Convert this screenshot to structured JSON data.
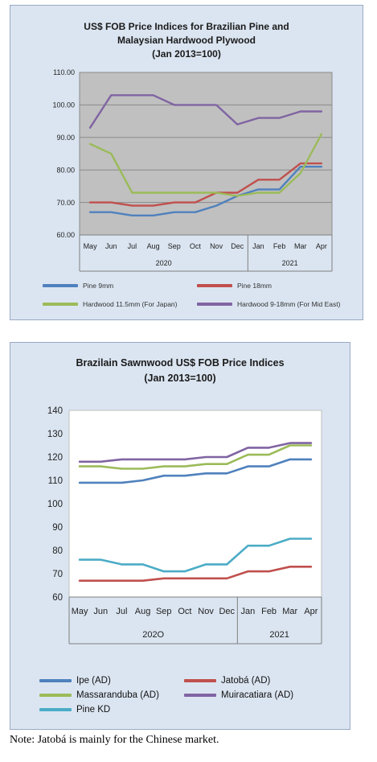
{
  "chart_data": [
    {
      "type": "line",
      "title_lines": [
        "US$ FOB Price Indices for Brazilian Pine and",
        "Malaysian Hardwood Plywood",
        "(Jan 2013=100)"
      ],
      "categories": [
        "May",
        "Jun",
        "Jul",
        "Aug",
        "Sep",
        "Oct",
        "Nov",
        "Dec",
        "Jan",
        "Feb",
        "Mar",
        "Apr"
      ],
      "year_groups": [
        {
          "label": "2020",
          "count": 8
        },
        {
          "label": "2021",
          "count": 4
        }
      ],
      "ylim": [
        60,
        110
      ],
      "yticks": [
        "60.00",
        "70.00",
        "80.00",
        "90.00",
        "100.00",
        "110.00"
      ],
      "grid": true,
      "legend_position": "bottom",
      "series": [
        {
          "name": "Pine 9mm",
          "color": "#4f81bd",
          "values": [
            67,
            67,
            66,
            66,
            67,
            67,
            69,
            72,
            74,
            74,
            81,
            81
          ]
        },
        {
          "name": "Pine 18mm",
          "color": "#c0504d",
          "values": [
            70,
            70,
            69,
            69,
            70,
            70,
            73,
            73,
            77,
            77,
            82,
            82
          ]
        },
        {
          "name": "Hardwood 11.5mm (For Japan)",
          "color": "#9bbb59",
          "values": [
            88,
            85,
            73,
            73,
            73,
            73,
            73,
            72,
            73,
            73,
            79,
            91
          ]
        },
        {
          "name": "Hardwood 9-18mm (For Mid East)",
          "color": "#8064a2",
          "values": [
            93,
            103,
            103,
            103,
            100,
            100,
            100,
            94,
            96,
            96,
            98,
            98
          ]
        }
      ]
    },
    {
      "type": "line",
      "title_lines": [
        "Brazilain Sawnwood US$ FOB Price Indices",
        "(Jan 2013=100)"
      ],
      "categories": [
        "May",
        "Jun",
        "Jul",
        "Aug",
        "Sep",
        "Oct",
        "Nov",
        "Dec",
        "Jan",
        "Feb",
        "Mar",
        "Apr"
      ],
      "year_groups": [
        {
          "label": "202O",
          "count": 8
        },
        {
          "label": "2021",
          "count": 4
        }
      ],
      "ylim": [
        60,
        140
      ],
      "yticks": [
        "60",
        "70",
        "80",
        "90",
        "100",
        "110",
        "120",
        "130",
        "140"
      ],
      "grid": false,
      "legend_position": "bottom",
      "series": [
        {
          "name": "Ipe (AD)",
          "color": "#4f81bd",
          "values": [
            109,
            109,
            109,
            110,
            112,
            112,
            113,
            113,
            116,
            116,
            119,
            119
          ]
        },
        {
          "name": "Jatobá (AD)",
          "color": "#c0504d",
          "values": [
            67,
            67,
            67,
            67,
            68,
            68,
            68,
            68,
            71,
            71,
            73,
            73
          ]
        },
        {
          "name": "Massaranduba (AD)",
          "color": "#9bbb59",
          "values": [
            116,
            116,
            115,
            115,
            116,
            116,
            117,
            117,
            121,
            121,
            125,
            125
          ]
        },
        {
          "name": "Muiracatiara (AD)",
          "color": "#8064a2",
          "values": [
            118,
            118,
            119,
            119,
            119,
            119,
            120,
            120,
            124,
            124,
            126,
            126
          ]
        },
        {
          "name": "Pine KD",
          "color": "#4bacc6",
          "values": [
            76,
            76,
            74,
            74,
            71,
            71,
            74,
            74,
            82,
            82,
            85,
            85
          ]
        }
      ]
    }
  ],
  "note": "Note: Jatobá is mainly for the Chinese market."
}
